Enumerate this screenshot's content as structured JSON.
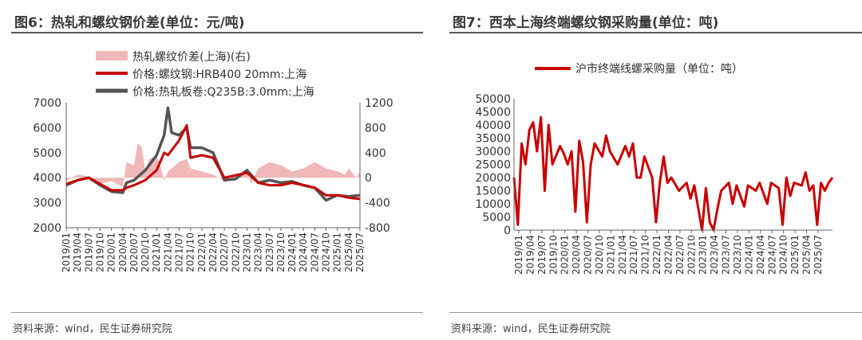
{
  "figures": [
    {
      "title": "图6：热轧和螺纹钢价差(单位：元/吨)",
      "source": "资料来源：wind，民生证券研究院",
      "chart_data": {
        "type": "line",
        "x_ticks": [
          "2019/01",
          "2019/04",
          "2019/07",
          "2019/10",
          "2020/01",
          "2020/04",
          "2020/07",
          "2020/10",
          "2021/01",
          "2021/04",
          "2021/07",
          "2021/10",
          "2022/01",
          "2022/04",
          "2022/07",
          "2022/10",
          "2023/01",
          "2023/04",
          "2023/07",
          "2023/10",
          "2024/01",
          "2024/04",
          "2024/07",
          "2024/10",
          "2025/01",
          "2025/04",
          "2025/07"
        ],
        "left_axis": {
          "ticks": [
            "7000",
            "6000",
            "5000",
            "4000",
            "3000",
            "2000"
          ],
          "ylim": [
            2000,
            7000
          ]
        },
        "right_axis": {
          "ticks": [
            "1200",
            "800",
            "400",
            "0",
            "-400",
            "-800"
          ],
          "ylim": [
            -800,
            1200
          ]
        },
        "legend_position": "top",
        "series": [
          {
            "name": "热轧螺纹价差(上海)(右)",
            "type": "area",
            "axis": "right",
            "color": "#f0b8b8",
            "values": [
              [
                0,
                -50
              ],
              [
                3,
                50
              ],
              [
                6,
                20
              ],
              [
                9,
                -100
              ],
              [
                12,
                -50
              ],
              [
                15,
                -150
              ],
              [
                16,
                250
              ],
              [
                18,
                200
              ],
              [
                19,
                550
              ],
              [
                20,
                500
              ],
              [
                21,
                100
              ],
              [
                22,
                300
              ],
              [
                24,
                350
              ],
              [
                25,
                200
              ],
              [
                26,
                -50
              ],
              [
                27,
                100
              ],
              [
                30,
                250
              ],
              [
                32,
                300
              ],
              [
                33,
                150
              ],
              [
                36,
                100
              ],
              [
                39,
                50
              ],
              [
                42,
                -50
              ],
              [
                45,
                50
              ],
              [
                48,
                100
              ],
              [
                49,
                -100
              ],
              [
                51,
                150
              ],
              [
                54,
                250
              ],
              [
                57,
                200
              ],
              [
                60,
                100
              ],
              [
                63,
                150
              ],
              [
                66,
                250
              ],
              [
                69,
                150
              ],
              [
                72,
                100
              ],
              [
                74,
                50
              ],
              [
                75,
                150
              ],
              [
                77,
                0
              ],
              [
                78,
                100
              ]
            ]
          },
          {
            "name": "价格:螺纹钢:HRB400 20mm:上海",
            "type": "line",
            "axis": "left",
            "color": "#c80000",
            "values": [
              [
                0,
                3750
              ],
              [
                3,
                3900
              ],
              [
                6,
                4000
              ],
              [
                9,
                3750
              ],
              [
                12,
                3500
              ],
              [
                15,
                3500
              ],
              [
                16,
                3600
              ],
              [
                18,
                3700
              ],
              [
                21,
                3900
              ],
              [
                24,
                4300
              ],
              [
                26,
                5000
              ],
              [
                27,
                4900
              ],
              [
                30,
                5500
              ],
              [
                32,
                6100
              ],
              [
                33,
                4800
              ],
              [
                36,
                4900
              ],
              [
                39,
                4800
              ],
              [
                42,
                4000
              ],
              [
                45,
                4100
              ],
              [
                48,
                4200
              ],
              [
                51,
                3800
              ],
              [
                54,
                3700
              ],
              [
                57,
                3700
              ],
              [
                60,
                3800
              ],
              [
                63,
                3700
              ],
              [
                66,
                3600
              ],
              [
                69,
                3300
              ],
              [
                72,
                3300
              ],
              [
                75,
                3200
              ],
              [
                78,
                3150
              ]
            ]
          },
          {
            "name": "价格:热轧板卷:Q235B:3.0mm:上海",
            "type": "line",
            "axis": "left",
            "color": "#555555",
            "values": [
              [
                0,
                3700
              ],
              [
                3,
                3900
              ],
              [
                6,
                4000
              ],
              [
                9,
                3700
              ],
              [
                12,
                3450
              ],
              [
                15,
                3400
              ],
              [
                16,
                3800
              ],
              [
                18,
                3900
              ],
              [
                21,
                4300
              ],
              [
                24,
                4900
              ],
              [
                26,
                5700
              ],
              [
                27,
                6800
              ],
              [
                28,
                5800
              ],
              [
                30,
                5700
              ],
              [
                32,
                6000
              ],
              [
                33,
                5200
              ],
              [
                36,
                5200
              ],
              [
                39,
                5000
              ],
              [
                42,
                3900
              ],
              [
                45,
                3950
              ],
              [
                48,
                4300
              ],
              [
                51,
                3800
              ],
              [
                54,
                3900
              ],
              [
                57,
                3800
              ],
              [
                60,
                3850
              ],
              [
                63,
                3700
              ],
              [
                66,
                3600
              ],
              [
                69,
                3100
              ],
              [
                72,
                3300
              ],
              [
                75,
                3250
              ],
              [
                78,
                3300
              ]
            ]
          }
        ]
      }
    },
    {
      "title": "图7：西本上海终端螺纹钢采购量(单位：吨)",
      "source": "资料来源：wind，民生证券研究院",
      "chart_data": {
        "type": "line",
        "x_ticks": [
          "2019/01",
          "2019/04",
          "2019/07",
          "2019/10",
          "2020/01",
          "2020/04",
          "2020/07",
          "2020/10",
          "2021/01",
          "2021/04",
          "2021/07",
          "2021/10",
          "2022/01",
          "2022/04",
          "2022/07",
          "2022/10",
          "2023/01",
          "2023/04",
          "2023/07",
          "2023/10",
          "2024/01",
          "2024/04",
          "2024/07",
          "2024/10",
          "2025/01",
          "2025/04",
          "2025/07"
        ],
        "y_ticks": [
          "50000",
          "45000",
          "40000",
          "35000",
          "30000",
          "25000",
          "20000",
          "15000",
          "10000",
          "5000",
          "0"
        ],
        "ylim": [
          0,
          50000
        ],
        "legend_position": "top-center",
        "series": [
          {
            "name": "沪市终端线螺采购量（单位：吨）",
            "color": "#c80000",
            "values": [
              [
                0,
                20000
              ],
              [
                1,
                2000
              ],
              [
                2,
                33000
              ],
              [
                3,
                25000
              ],
              [
                4,
                38000
              ],
              [
                5,
                41000
              ],
              [
                6,
                30000
              ],
              [
                7,
                43000
              ],
              [
                8,
                15000
              ],
              [
                9,
                40000
              ],
              [
                10,
                25000
              ],
              [
                12,
                32000
              ],
              [
                13,
                29000
              ],
              [
                14,
                25000
              ],
              [
                15,
                30000
              ],
              [
                16,
                7000
              ],
              [
                17,
                34000
              ],
              [
                18,
                26000
              ],
              [
                19,
                3000
              ],
              [
                20,
                25000
              ],
              [
                21,
                33000
              ],
              [
                23,
                28000
              ],
              [
                24,
                36000
              ],
              [
                25,
                30000
              ],
              [
                27,
                25000
              ],
              [
                29,
                32000
              ],
              [
                30,
                28000
              ],
              [
                31,
                33000
              ],
              [
                32,
                20000
              ],
              [
                33,
                20000
              ],
              [
                34,
                28000
              ],
              [
                36,
                20000
              ],
              [
                37,
                3000
              ],
              [
                38,
                18000
              ],
              [
                39,
                28000
              ],
              [
                40,
                18000
              ],
              [
                41,
                20000
              ],
              [
                43,
                15000
              ],
              [
                45,
                18000
              ],
              [
                46,
                12000
              ],
              [
                47,
                17000
              ],
              [
                49,
                0
              ],
              [
                50,
                16000
              ],
              [
                51,
                3000
              ],
              [
                52,
                0
              ],
              [
                53,
                8000
              ],
              [
                54,
                15000
              ],
              [
                56,
                18000
              ],
              [
                57,
                10000
              ],
              [
                58,
                17000
              ],
              [
                60,
                9000
              ],
              [
                61,
                17000
              ],
              [
                63,
                15000
              ],
              [
                64,
                18000
              ],
              [
                66,
                10000
              ],
              [
                67,
                18000
              ],
              [
                69,
                16000
              ],
              [
                70,
                2000
              ],
              [
                71,
                20000
              ],
              [
                72,
                13000
              ],
              [
                73,
                18000
              ],
              [
                75,
                17000
              ],
              [
                76,
                22000
              ],
              [
                77,
                15000
              ],
              [
                78,
                17000
              ],
              [
                79,
                2000
              ],
              [
                80,
                18000
              ],
              [
                81,
                15000
              ],
              [
                82,
                18000
              ],
              [
                83,
                20000
              ]
            ]
          }
        ]
      }
    }
  ]
}
